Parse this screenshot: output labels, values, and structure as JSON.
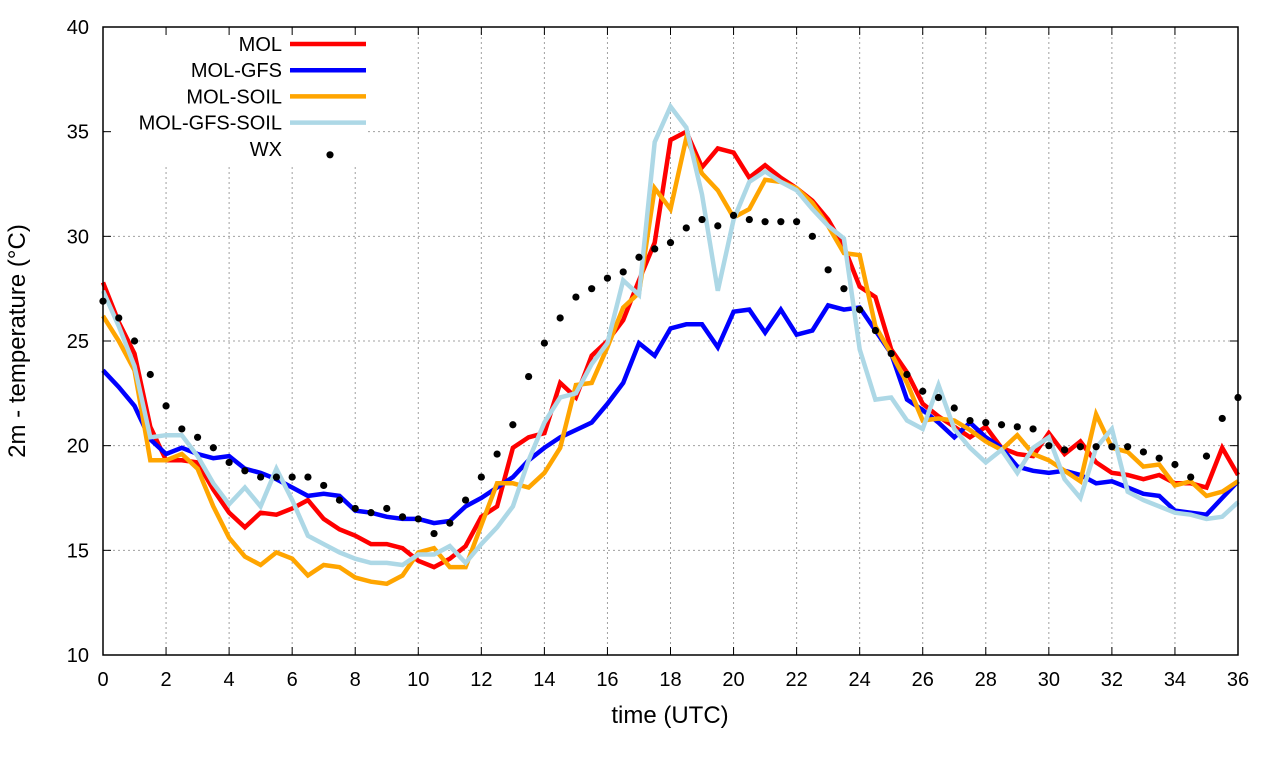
{
  "chart_data": {
    "type": "line",
    "title": "",
    "xlabel": "time (UTC)",
    "ylabel": "2m - temperature (°C)",
    "xlim": [
      0,
      36
    ],
    "ylim": [
      10,
      40
    ],
    "xticks": [
      0,
      2,
      4,
      6,
      8,
      10,
      12,
      14,
      16,
      18,
      20,
      22,
      24,
      26,
      28,
      30,
      32,
      34,
      36
    ],
    "yticks": [
      10,
      15,
      20,
      25,
      30,
      35,
      40
    ],
    "grid": true,
    "legend_position": "top-left",
    "x_step": 0.5,
    "series": [
      {
        "name": "MOL",
        "color": "#ff0000",
        "style": "line",
        "values": [
          27.8,
          25.9,
          24.4,
          20.9,
          19.3,
          19.3,
          19.2,
          17.9,
          16.8,
          16.1,
          16.8,
          16.7,
          17.0,
          17.4,
          16.5,
          16.0,
          15.7,
          15.3,
          15.3,
          15.1,
          14.5,
          14.2,
          14.6,
          15.2,
          16.6,
          17.1,
          19.9,
          20.4,
          20.6,
          23.0,
          22.3,
          24.3,
          25.0,
          26.0,
          27.9,
          29.7,
          34.6,
          35.0,
          33.3,
          34.2,
          34.0,
          32.8,
          33.4,
          32.8,
          32.3,
          31.7,
          30.8,
          29.5,
          27.6,
          27.1,
          24.6,
          23.5,
          22.0,
          21.4,
          20.9,
          20.4,
          20.9,
          19.9,
          19.6,
          19.5,
          20.6,
          19.6,
          20.2,
          19.2,
          18.7,
          18.6,
          18.4,
          18.6,
          18.2,
          18.2,
          18.0,
          19.9,
          18.6
        ]
      },
      {
        "name": "MOL-GFS",
        "color": "#0000ff",
        "style": "line",
        "values": [
          23.6,
          22.8,
          21.9,
          20.3,
          19.6,
          19.9,
          19.6,
          19.4,
          19.5,
          18.9,
          18.7,
          18.4,
          18.0,
          17.6,
          17.7,
          17.6,
          16.9,
          16.8,
          16.6,
          16.5,
          16.5,
          16.3,
          16.4,
          17.1,
          17.5,
          18.0,
          18.5,
          19.3,
          19.9,
          20.4,
          20.75,
          21.1,
          22.0,
          23.0,
          24.9,
          24.3,
          25.6,
          25.8,
          25.8,
          24.7,
          26.4,
          26.5,
          25.4,
          26.5,
          25.3,
          25.5,
          26.7,
          26.5,
          26.6,
          25.5,
          24.4,
          22.2,
          21.7,
          21.1,
          20.4,
          21.1,
          20.4,
          19.9,
          19.0,
          18.8,
          18.7,
          18.8,
          18.6,
          18.2,
          18.3,
          18.0,
          17.7,
          17.6,
          16.9,
          16.8,
          16.7,
          17.5,
          18.3
        ]
      },
      {
        "name": "MOL-SOIL",
        "color": "#ffa500",
        "style": "line",
        "values": [
          26.2,
          25.0,
          23.6,
          19.3,
          19.3,
          19.6,
          18.9,
          17.1,
          15.6,
          14.7,
          14.3,
          14.9,
          14.6,
          13.8,
          14.3,
          14.2,
          13.7,
          13.5,
          13.4,
          13.8,
          14.9,
          15.1,
          14.2,
          14.2,
          16.2,
          18.2,
          18.2,
          18.0,
          18.7,
          19.9,
          22.9,
          23.0,
          24.7,
          26.6,
          27.3,
          32.3,
          31.3,
          34.7,
          33.0,
          32.2,
          30.9,
          31.3,
          32.7,
          32.6,
          32.3,
          31.6,
          30.5,
          29.2,
          29.1,
          25.7,
          24.4,
          23.0,
          21.2,
          21.3,
          21.2,
          20.75,
          20.2,
          19.8,
          20.5,
          19.6,
          19.3,
          18.8,
          18.3,
          21.5,
          19.9,
          19.7,
          19.0,
          19.1,
          18.1,
          18.3,
          17.6,
          17.8,
          18.3
        ]
      },
      {
        "name": "MOL-GFS-SOIL",
        "color": "#add8e6",
        "style": "line",
        "values": [
          27.4,
          25.7,
          23.8,
          20.4,
          20.5,
          20.5,
          19.5,
          18.2,
          17.2,
          18.0,
          17.1,
          18.9,
          17.4,
          15.7,
          15.3,
          14.9,
          14.6,
          14.4,
          14.4,
          14.3,
          14.8,
          14.8,
          15.2,
          14.4,
          15.3,
          16.1,
          17.1,
          19.3,
          21.1,
          22.3,
          22.5,
          23.9,
          24.9,
          27.9,
          27.2,
          34.5,
          36.2,
          35.2,
          32.0,
          27.4,
          30.8,
          32.6,
          33.1,
          32.6,
          32.2,
          31.3,
          30.5,
          29.9,
          24.6,
          22.2,
          22.3,
          21.2,
          20.8,
          22.9,
          20.8,
          19.9,
          19.2,
          19.8,
          18.7,
          19.9,
          20.4,
          18.4,
          17.5,
          19.9,
          20.8,
          17.8,
          17.4,
          17.1,
          16.8,
          16.7,
          16.5,
          16.6,
          17.3
        ]
      },
      {
        "name": "WX",
        "color": "#000000",
        "style": "points",
        "values": [
          26.9,
          26.1,
          25.0,
          23.4,
          21.9,
          20.8,
          20.4,
          19.9,
          19.2,
          18.8,
          18.5,
          18.5,
          18.5,
          18.5,
          18.1,
          17.4,
          17.0,
          16.8,
          17.0,
          16.6,
          16.5,
          15.8,
          16.3,
          17.4,
          18.5,
          19.6,
          21.0,
          23.3,
          24.9,
          26.1,
          27.1,
          27.5,
          28.0,
          28.3,
          29.0,
          29.4,
          29.7,
          30.4,
          30.8,
          30.5,
          31.0,
          30.8,
          30.7,
          30.7,
          30.7,
          30.0,
          28.4,
          27.5,
          26.5,
          25.5,
          24.4,
          23.4,
          22.6,
          22.3,
          21.8,
          21.2,
          21.1,
          21.0,
          20.9,
          20.8,
          20.0,
          19.8,
          19.95,
          19.95,
          19.95,
          19.95,
          19.7,
          19.4,
          19.1,
          18.5,
          19.5,
          21.3,
          22.3
        ]
      }
    ]
  }
}
